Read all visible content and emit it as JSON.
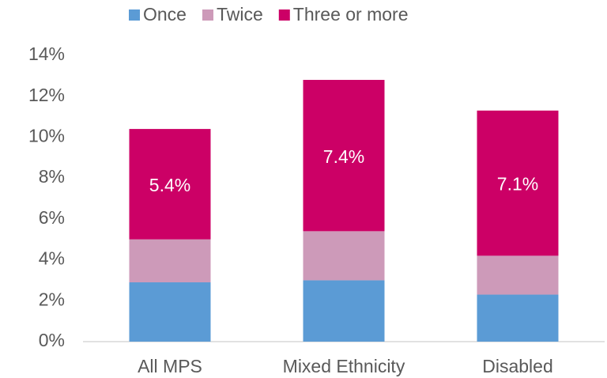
{
  "chart_data": {
    "type": "stacked-bar",
    "categories": [
      "All MPS",
      "Mixed Ethnicity",
      "Disabled"
    ],
    "series": [
      {
        "name": "Once",
        "color": "#5b9bd5",
        "values": [
          2.9,
          3.0,
          2.3
        ]
      },
      {
        "name": "Twice",
        "color": "#cd9ab9",
        "values": [
          2.1,
          2.4,
          1.9
        ]
      },
      {
        "name": "Three or more",
        "color": "#cc0066",
        "values": [
          5.4,
          7.4,
          7.1
        ],
        "value_labels": [
          "5.4%",
          "7.4%",
          "7.1%"
        ]
      }
    ],
    "ylim": [
      0,
      14
    ],
    "yticks": [
      {
        "value": 0,
        "label": "0%"
      },
      {
        "value": 2,
        "label": "2%"
      },
      {
        "value": 4,
        "label": "4%"
      },
      {
        "value": 6,
        "label": "6%"
      },
      {
        "value": 8,
        "label": "8%"
      },
      {
        "value": 10,
        "label": "10%"
      },
      {
        "value": 12,
        "label": "12%"
      },
      {
        "value": 14,
        "label": "14%"
      }
    ],
    "legend": "top"
  }
}
